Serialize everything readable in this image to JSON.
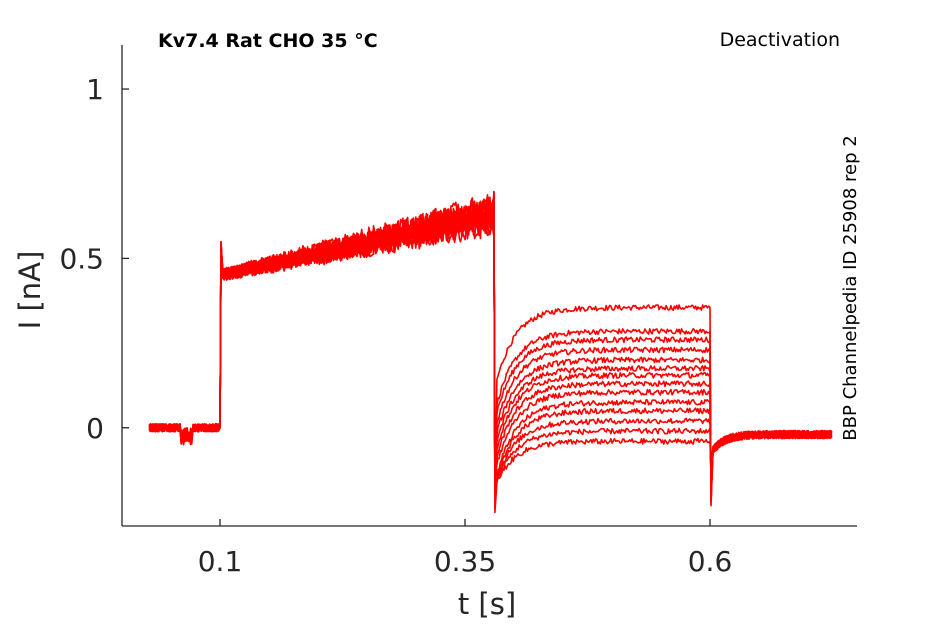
{
  "chart_data": {
    "type": "line",
    "title_left": "Kv7.4  Rat  CHO  35 °C",
    "title_right": "Deactivation",
    "side_label": "BBP Channelpedia ID 25908 rep 2",
    "xlabel": "t [s]",
    "ylabel": "I [nA]",
    "xlim": [
      0.0,
      0.75
    ],
    "ylim": [
      -0.29,
      1.13
    ],
    "xticks": [
      0.1,
      0.35,
      0.6
    ],
    "xtick_labels": [
      "0.1",
      "0.35",
      "0.6"
    ],
    "yticks": [
      0,
      0.5,
      1
    ],
    "ytick_labels": [
      "0",
      "0.5",
      "1"
    ],
    "grid": false,
    "series_color": "#ff0000",
    "segments": {
      "pre": {
        "x_start": 0.028,
        "x_end": 0.1,
        "level": 0.0
      },
      "step": {
        "x_start": 0.1,
        "x_end": 0.3795,
        "start_level": 0.45,
        "end_level": 0.63
      },
      "tail": {
        "x_start": 0.3795,
        "x_end": 0.6,
        "peak_dip": -0.25
      },
      "post": {
        "x_start": 0.6,
        "x_end": 0.725,
        "level": -0.02,
        "dip": -0.23
      }
    },
    "series": [
      {
        "tail_level": 0.355
      },
      {
        "tail_level": 0.285
      },
      {
        "tail_level": 0.26
      },
      {
        "tail_level": 0.23
      },
      {
        "tail_level": 0.2
      },
      {
        "tail_level": 0.175
      },
      {
        "tail_level": 0.155
      },
      {
        "tail_level": 0.13
      },
      {
        "tail_level": 0.105
      },
      {
        "tail_level": 0.075
      },
      {
        "tail_level": 0.05
      },
      {
        "tail_level": 0.02
      },
      {
        "tail_level": -0.01
      },
      {
        "tail_level": -0.04
      }
    ]
  }
}
